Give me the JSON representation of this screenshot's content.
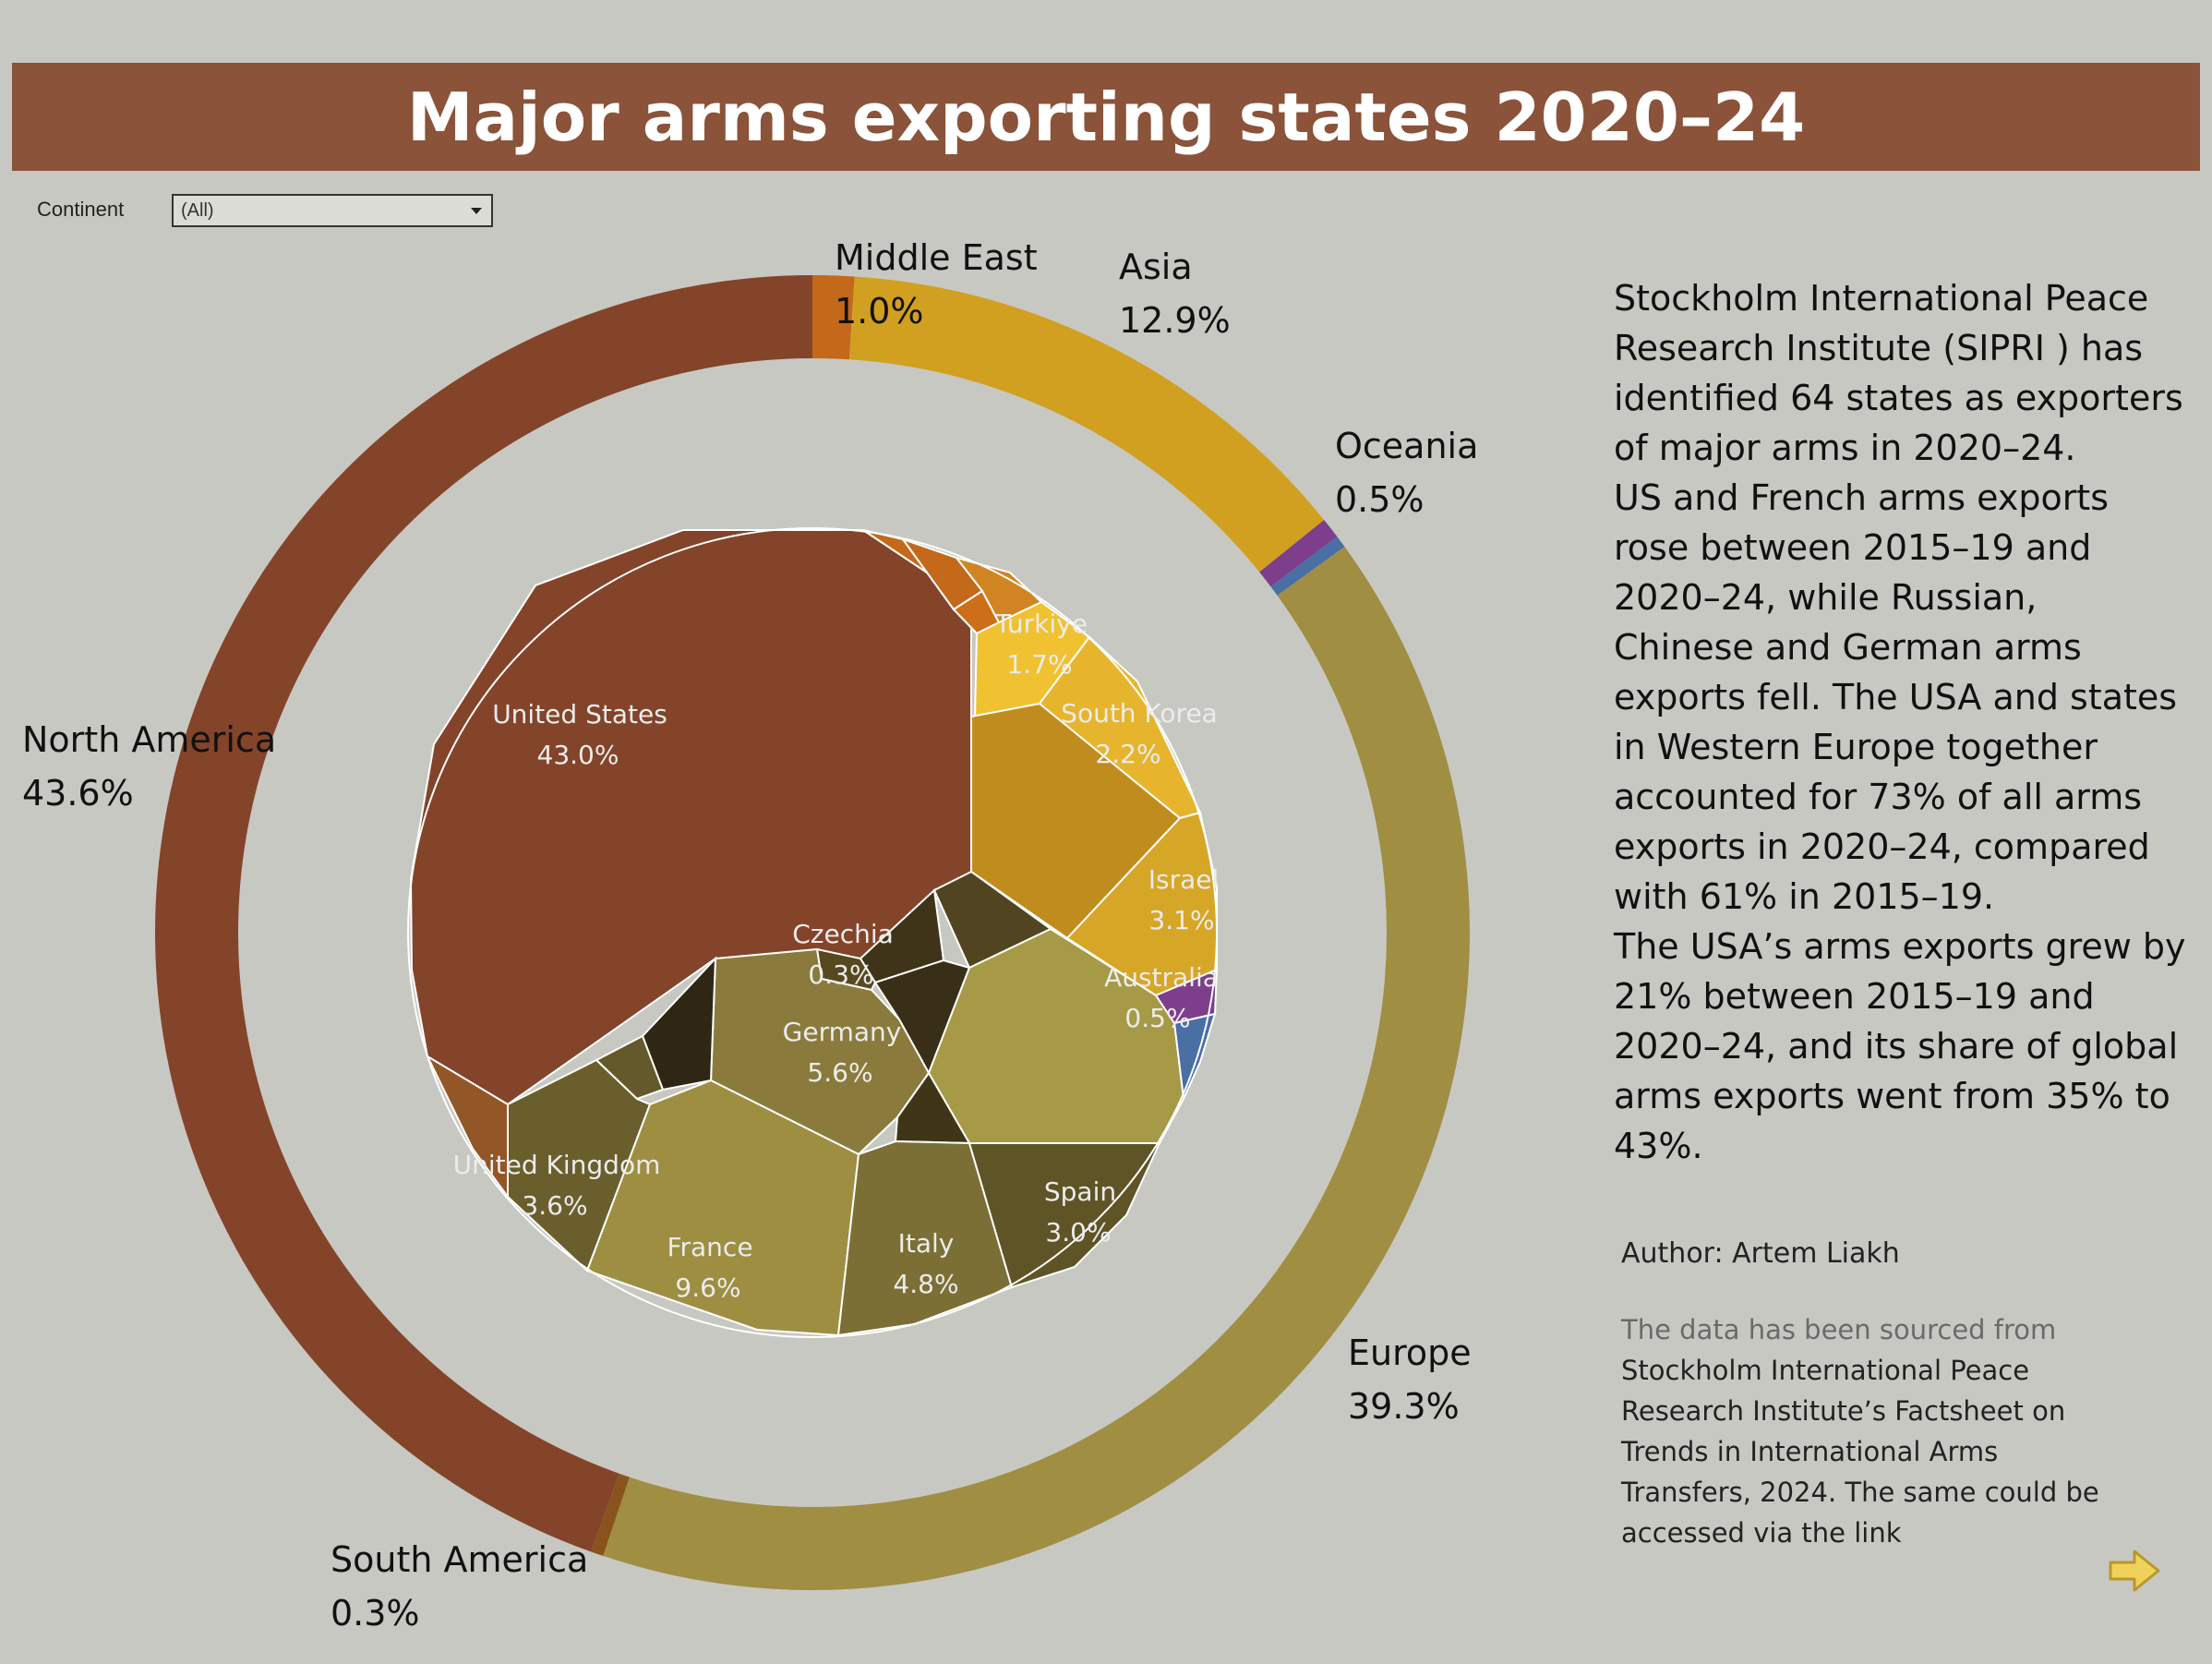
{
  "header": {
    "title": "Major arms exporting states 2020–24"
  },
  "filter": {
    "label": "Continent",
    "value": "(All)"
  },
  "description": {
    "paragraphs": [
      "Stockholm International Peace Research Institute (SIPRI ) has identified 64 states as exporters of major arms in 2020–24.",
      "US and French arms exports rose between 2015–19 and 2020–24, while Russian, Chinese and German arms exports fell. The USA and states in Western Europe together accounted for 73% of all arms exports in 2020–24, compared with 61% in 2015–19.",
      "The USA’s arms exports grew by 21% between 2015–19 and 2020–24, and its share of global arms exports went from 35% to 43%."
    ]
  },
  "author": {
    "text": "Author:  Artem Liakh"
  },
  "source": {
    "lead": "The data has been sourced from",
    "link_text": "Stockholm International Peace Research Institute’s Factsheet on Trends in International Arms Transfers, 2024. The same could be accessed via the link"
  },
  "icons": {
    "next": "arrow-right-icon"
  },
  "chart_data": {
    "type": "donut-voronoi",
    "title": "Major arms exporting states 2020–24",
    "outer_ring": [
      {
        "name": "North America",
        "label": "43.6%",
        "value": 43.6,
        "color": "#83442a"
      },
      {
        "name": "Middle East",
        "label": "1.0%",
        "value": 1.0,
        "color": "#c4681a"
      },
      {
        "name": "Asia",
        "label": "12.9%",
        "value": 12.9,
        "color": "#d1a020"
      },
      {
        "name": "Oceania",
        "label": "0.5%",
        "value": 0.5,
        "color": "#7d3e8c"
      },
      {
        "name": "",
        "label": "",
        "value": 0.3,
        "color": "#4a6fa5"
      },
      {
        "name": "Europe",
        "label": "39.3%",
        "value": 39.3,
        "color": "#a08e43"
      },
      {
        "name": "South America",
        "label": "0.3%",
        "value": 0.3,
        "color": "#8a531e"
      }
    ],
    "inner_labels": [
      {
        "name": "United States",
        "label": "43.0%"
      },
      {
        "name": "Turkiye",
        "label": "1.7%"
      },
      {
        "name": "South Korea",
        "label": "2.2%"
      },
      {
        "name": "Israel",
        "label": "3.1%"
      },
      {
        "name": "Australia",
        "label": "0.5%"
      },
      {
        "name": "Czechia",
        "label": "0.3%"
      },
      {
        "name": "Germany",
        "label": "5.6%"
      },
      {
        "name": "United Kingdom",
        "label": "3.6%"
      },
      {
        "name": "France",
        "label": "9.6%"
      },
      {
        "name": "Italy",
        "label": "4.8%"
      },
      {
        "name": "Spain",
        "label": "3.0%"
      }
    ]
  }
}
